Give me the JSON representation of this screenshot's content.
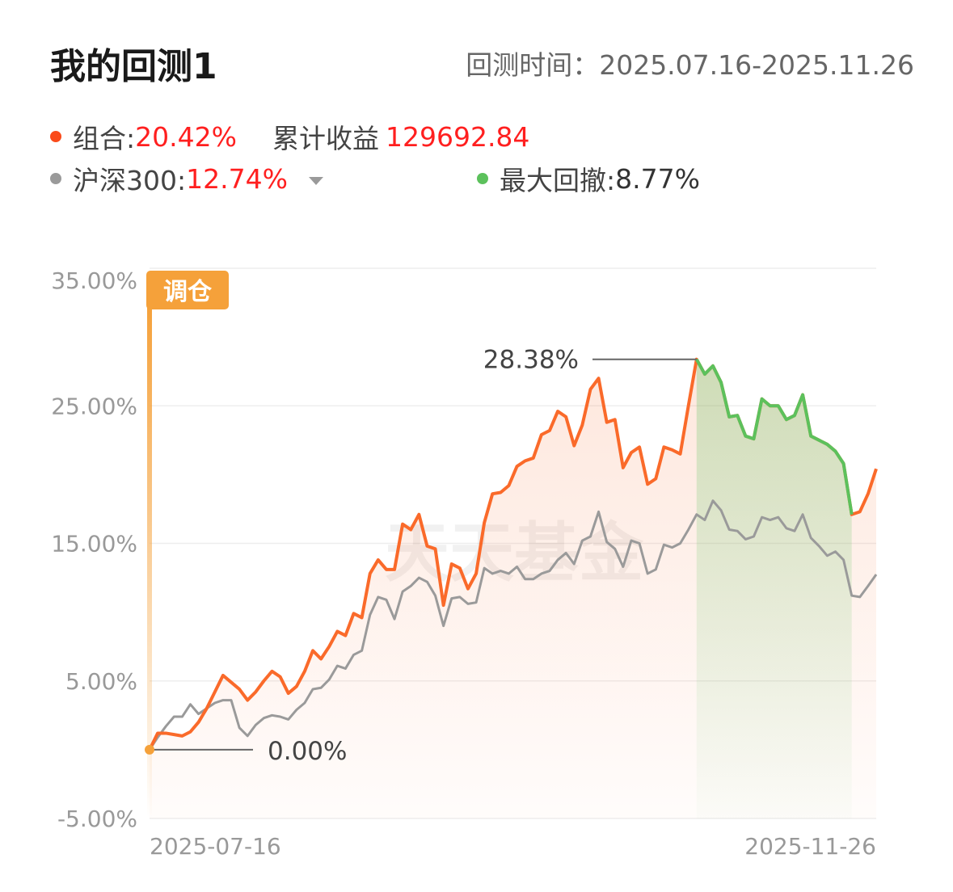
{
  "header": {
    "title": "我的回测1",
    "period_label": "回测时间：",
    "period_value": "2025.07.16-2025.11.26"
  },
  "summary": {
    "portfolio_label": "组合:",
    "portfolio_return": "20.42%",
    "cum_label": "累计收益",
    "cum_value": "129692.84",
    "benchmark_label": "沪深300:",
    "benchmark_return": "12.74%",
    "drawdown_label": "最大回撤:",
    "drawdown_value": "8.77%"
  },
  "colors": {
    "portfolio": "#fa6a2a",
    "benchmark": "#9a9a9a",
    "drawdown": "#5cc15c",
    "rebalance": "#f5a13a",
    "positive_text": "#ff1f1f"
  },
  "watermark": "天天基金",
  "chart_data": {
    "type": "line",
    "ylim": [
      -5,
      35
    ],
    "y_ticks": [
      "35.00%",
      "25.00%",
      "15.00%",
      "5.00%",
      "-5.00%"
    ],
    "x_tick_labels": [
      "2025-07-16",
      "2025-11-26"
    ],
    "rebalance_label": "调仓",
    "annotations": {
      "max": "28.38%",
      "start": "0.00%"
    },
    "series": [
      {
        "name": "组合",
        "values": [
          0,
          1.2,
          1.2,
          1.1,
          1.0,
          1.3,
          2.0,
          3.0,
          4.2,
          5.4,
          4.9,
          4.4,
          3.6,
          4.2,
          5.0,
          5.7,
          5.3,
          4.1,
          4.6,
          5.7,
          7.2,
          6.6,
          7.5,
          8.6,
          8.3,
          9.9,
          9.6,
          12.8,
          13.8,
          13.1,
          13.1,
          16.4,
          16.0,
          17.1,
          14.8,
          14.6,
          10.5,
          13.5,
          13.2,
          11.7,
          12.8,
          16.5,
          18.6,
          18.7,
          19.2,
          20.6,
          21.0,
          21.2,
          22.9,
          23.2,
          24.6,
          24.2,
          22.1,
          23.6,
          26.2,
          27.0,
          23.8,
          24.0,
          20.5,
          21.6,
          22.0,
          19.3,
          19.7,
          22.0,
          21.8,
          21.5,
          25.0,
          28.38,
          27.3,
          27.9,
          26.7,
          24.2,
          24.3,
          22.8,
          22.6,
          25.5,
          25.0,
          25.0,
          24.0,
          24.3,
          25.8,
          22.8,
          22.5,
          22.2,
          21.7,
          20.8,
          17.1,
          17.3,
          18.6,
          20.42
        ]
      },
      {
        "name": "沪深300",
        "values": [
          0,
          0.9,
          1.7,
          2.4,
          2.4,
          3.3,
          2.6,
          3.0,
          3.4,
          3.6,
          3.6,
          1.6,
          1.0,
          1.8,
          2.3,
          2.5,
          2.4,
          2.2,
          2.9,
          3.4,
          4.4,
          4.5,
          5.1,
          6.1,
          5.9,
          6.9,
          7.2,
          9.8,
          11.1,
          10.9,
          9.5,
          11.5,
          11.9,
          12.5,
          12.2,
          11.2,
          9.0,
          11.0,
          11.1,
          10.6,
          10.7,
          13.2,
          12.8,
          13.0,
          12.8,
          13.3,
          12.4,
          12.4,
          12.8,
          13.0,
          13.8,
          14.3,
          13.5,
          15.2,
          15.5,
          17.3,
          15.1,
          14.6,
          13.3,
          15.2,
          15.0,
          12.8,
          13.1,
          14.9,
          14.7,
          15.0,
          16.0,
          17.1,
          16.7,
          18.1,
          17.4,
          16.0,
          15.9,
          15.3,
          15.5,
          16.9,
          16.7,
          16.9,
          16.1,
          15.9,
          17.1,
          15.4,
          14.8,
          14.1,
          14.4,
          13.8,
          11.2,
          11.1,
          11.9,
          12.74
        ]
      }
    ],
    "drawdown": {
      "from_index": 67,
      "to_index": 86
    },
    "grid": true,
    "legend": "top-left"
  }
}
